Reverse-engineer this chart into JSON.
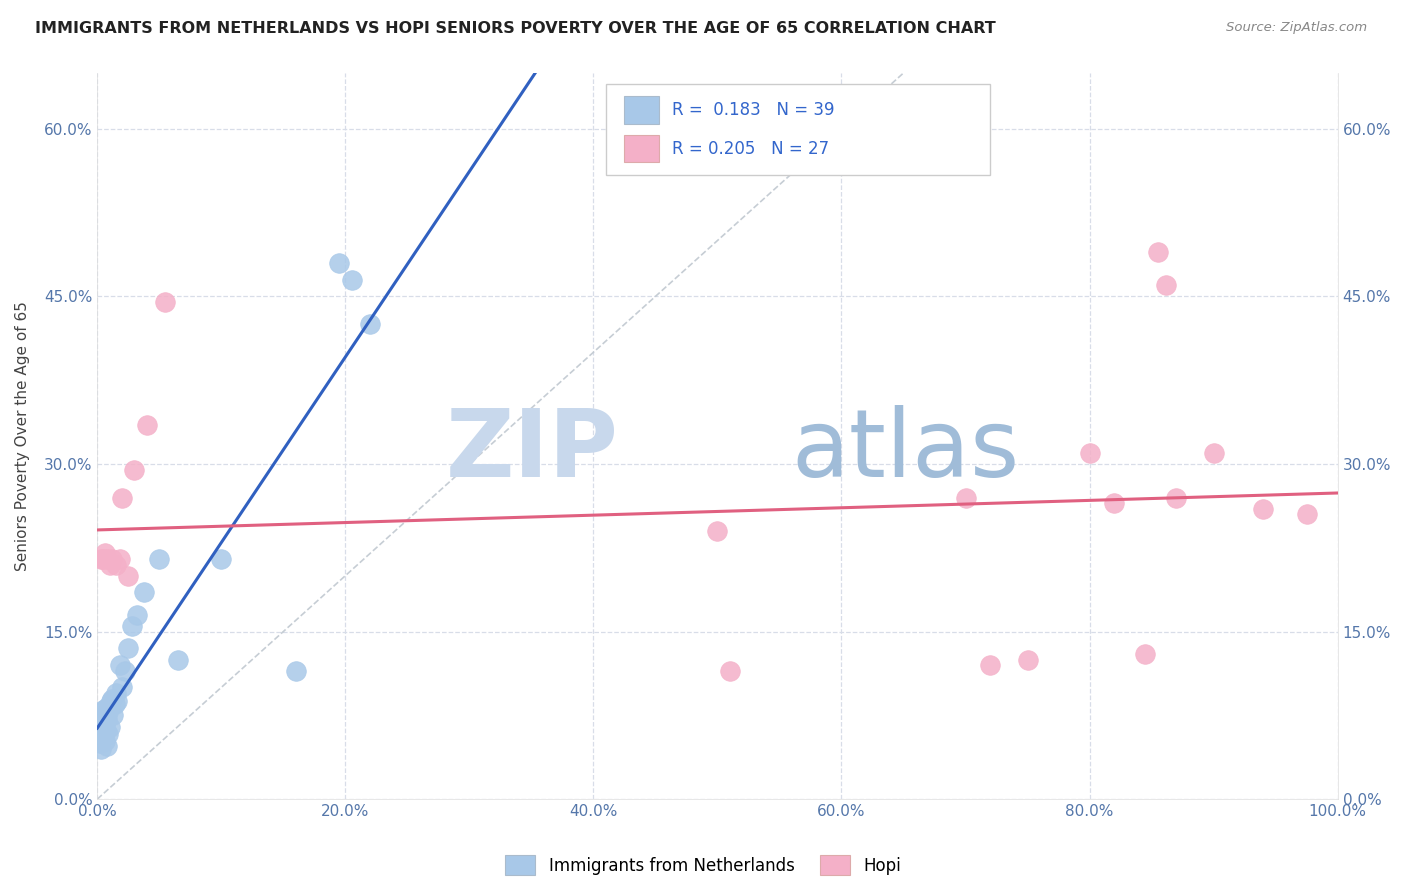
{
  "title": "IMMIGRANTS FROM NETHERLANDS VS HOPI SENIORS POVERTY OVER THE AGE OF 65 CORRELATION CHART",
  "source": "Source: ZipAtlas.com",
  "ylabel": "Seniors Poverty Over the Age of 65",
  "xlim": [
    0,
    1.0
  ],
  "ylim": [
    0,
    0.65
  ],
  "xticks": [
    0.0,
    0.2,
    0.4,
    0.6,
    0.8,
    1.0
  ],
  "yticks": [
    0.0,
    0.15,
    0.3,
    0.45,
    0.6
  ],
  "xticklabels": [
    "0.0%",
    "20.0%",
    "40.0%",
    "60.0%",
    "80.0%",
    "100.0%"
  ],
  "yticklabels": [
    "0.0%",
    "15.0%",
    "30.0%",
    "45.0%",
    "60.0%"
  ],
  "legend1_label": "Immigrants from Netherlands",
  "legend2_label": "Hopi",
  "R1": "0.183",
  "N1": "39",
  "R2": "0.205",
  "N2": "27",
  "blue_scatter_color": "#a8c8e8",
  "pink_scatter_color": "#f4b0c8",
  "blue_line_color": "#3060c0",
  "pink_line_color": "#e06080",
  "diagonal_color": "#c0c8d0",
  "background_color": "#ffffff",
  "grid_color": "#d8dde8",
  "watermark_zip": "ZIP",
  "watermark_atlas": "atlas",
  "blue_scatter_x": [
    0.002,
    0.003,
    0.003,
    0.004,
    0.004,
    0.005,
    0.005,
    0.005,
    0.006,
    0.006,
    0.006,
    0.007,
    0.007,
    0.008,
    0.008,
    0.009,
    0.009,
    0.01,
    0.01,
    0.011,
    0.012,
    0.013,
    0.014,
    0.015,
    0.016,
    0.018,
    0.02,
    0.022,
    0.025,
    0.028,
    0.032,
    0.038,
    0.05,
    0.065,
    0.1,
    0.16,
    0.195,
    0.205,
    0.22
  ],
  "blue_scatter_y": [
    0.05,
    0.045,
    0.06,
    0.055,
    0.065,
    0.058,
    0.07,
    0.08,
    0.052,
    0.068,
    0.075,
    0.062,
    0.082,
    0.048,
    0.072,
    0.058,
    0.078,
    0.065,
    0.085,
    0.088,
    0.09,
    0.075,
    0.085,
    0.095,
    0.088,
    0.12,
    0.1,
    0.115,
    0.135,
    0.155,
    0.165,
    0.185,
    0.215,
    0.125,
    0.215,
    0.115,
    0.48,
    0.465,
    0.425
  ],
  "pink_scatter_x": [
    0.003,
    0.005,
    0.006,
    0.008,
    0.01,
    0.012,
    0.015,
    0.018,
    0.02,
    0.025,
    0.03,
    0.04,
    0.055,
    0.5,
    0.51,
    0.7,
    0.72,
    0.75,
    0.8,
    0.82,
    0.845,
    0.855,
    0.862,
    0.87,
    0.9,
    0.94,
    0.975
  ],
  "pink_scatter_y": [
    0.215,
    0.215,
    0.22,
    0.215,
    0.21,
    0.215,
    0.21,
    0.215,
    0.27,
    0.2,
    0.295,
    0.335,
    0.445,
    0.24,
    0.115,
    0.27,
    0.12,
    0.125,
    0.31,
    0.265,
    0.13,
    0.49,
    0.46,
    0.27,
    0.31,
    0.26,
    0.255
  ]
}
